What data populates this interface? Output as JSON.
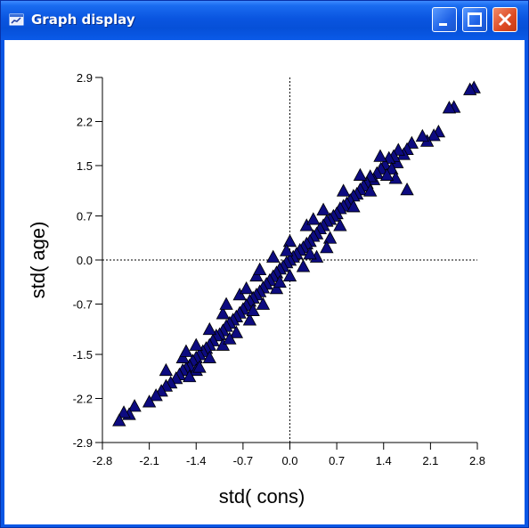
{
  "window": {
    "title": "Graph display"
  },
  "chart_data": {
    "type": "scatter",
    "xlabel": "std( cons)",
    "ylabel": "std( age)",
    "xlim": [
      -2.8,
      2.8
    ],
    "ylim": [
      -2.9,
      2.9
    ],
    "x_ticks": [
      -2.8,
      -2.1,
      -1.4,
      -0.7,
      0.0,
      0.7,
      1.4,
      2.1,
      2.8
    ],
    "x_tick_labels": [
      "-2.8",
      "-2.1",
      "-1.4",
      "-0.7",
      "0.0",
      "0.7",
      "1.4",
      "2.1",
      "2.8"
    ],
    "y_ticks": [
      2.9,
      2.2,
      1.5,
      0.7,
      0.0,
      -0.7,
      -1.5,
      -2.2,
      -2.9
    ],
    "y_tick_labels": [
      "2.9",
      "2.2",
      "1.5",
      "0.7",
      "0.0",
      "-0.7",
      "-1.5",
      "-2.2",
      "-2.9"
    ],
    "reference_lines": {
      "x": 0,
      "y": 0
    },
    "marker": {
      "shape": "triangle",
      "fill": "#0d0b80",
      "stroke": "#000000"
    },
    "series": [
      {
        "points": [
          [
            2.75,
            2.74
          ],
          [
            2.69,
            2.71
          ],
          [
            2.45,
            2.43
          ],
          [
            2.38,
            2.42
          ],
          [
            2.22,
            2.04
          ],
          [
            2.15,
            1.98
          ],
          [
            2.05,
            1.89
          ],
          [
            1.98,
            1.97
          ],
          [
            1.82,
            1.86
          ],
          [
            1.75,
            1.76
          ],
          [
            1.7,
            1.68
          ],
          [
            1.62,
            1.75
          ],
          [
            1.6,
            1.55
          ],
          [
            1.55,
            1.65
          ],
          [
            1.48,
            1.62
          ],
          [
            1.42,
            1.52
          ],
          [
            1.36,
            1.45
          ],
          [
            1.3,
            1.38
          ],
          [
            1.25,
            1.28
          ],
          [
            1.2,
            1.33
          ],
          [
            1.15,
            1.22
          ],
          [
            1.1,
            1.18
          ],
          [
            1.05,
            1.12
          ],
          [
            1.0,
            1.05
          ],
          [
            0.95,
            1.02
          ],
          [
            0.9,
            0.95
          ],
          [
            0.85,
            0.9
          ],
          [
            0.8,
            0.86
          ],
          [
            0.75,
            0.82
          ],
          [
            0.7,
            0.74
          ],
          [
            0.65,
            0.7
          ],
          [
            0.6,
            0.65
          ],
          [
            0.55,
            0.62
          ],
          [
            0.5,
            0.55
          ],
          [
            0.45,
            0.5
          ],
          [
            0.4,
            0.42
          ],
          [
            0.35,
            0.38
          ],
          [
            0.3,
            0.3
          ],
          [
            0.25,
            0.26
          ],
          [
            0.2,
            0.2
          ],
          [
            0.15,
            0.16
          ],
          [
            0.1,
            0.1
          ],
          [
            0.05,
            0.05
          ],
          [
            0.0,
            0.0
          ],
          [
            -0.05,
            -0.04
          ],
          [
            -0.1,
            -0.1
          ],
          [
            -0.15,
            -0.14
          ],
          [
            -0.2,
            -0.2
          ],
          [
            -0.25,
            -0.26
          ],
          [
            -0.3,
            -0.32
          ],
          [
            -0.35,
            -0.38
          ],
          [
            -0.4,
            -0.44
          ],
          [
            -0.45,
            -0.5
          ],
          [
            -0.5,
            -0.55
          ],
          [
            -0.55,
            -0.6
          ],
          [
            -0.6,
            -0.65
          ],
          [
            -0.65,
            -0.72
          ],
          [
            -0.7,
            -0.78
          ],
          [
            -0.75,
            -0.84
          ],
          [
            -0.8,
            -0.9
          ],
          [
            -0.85,
            -0.95
          ],
          [
            -0.9,
            -1.0
          ],
          [
            -0.95,
            -1.05
          ],
          [
            -1.0,
            -1.12
          ],
          [
            -1.05,
            -1.18
          ],
          [
            -1.1,
            -1.2
          ],
          [
            -1.15,
            -1.28
          ],
          [
            -1.2,
            -1.35
          ],
          [
            -1.25,
            -1.4
          ],
          [
            -1.3,
            -1.45
          ],
          [
            -1.35,
            -1.5
          ],
          [
            -1.4,
            -1.55
          ],
          [
            -1.45,
            -1.6
          ],
          [
            -1.5,
            -1.68
          ],
          [
            -1.55,
            -1.72
          ],
          [
            -1.6,
            -1.75
          ],
          [
            -1.65,
            -1.82
          ],
          [
            -1.7,
            -1.88
          ],
          [
            -1.78,
            -1.95
          ],
          [
            -1.85,
            -2.0
          ],
          [
            -1.92,
            -2.08
          ],
          [
            -2.0,
            -2.15
          ],
          [
            -2.1,
            -2.25
          ],
          [
            -2.32,
            -2.32
          ],
          [
            -2.4,
            -2.45
          ],
          [
            -2.48,
            -2.42
          ],
          [
            -2.55,
            -2.55
          ],
          [
            1.75,
            1.12
          ],
          [
            1.52,
            1.45
          ],
          [
            1.58,
            1.3
          ],
          [
            1.2,
            1.1
          ],
          [
            0.95,
            0.85
          ],
          [
            0.6,
            0.35
          ],
          [
            0.55,
            0.2
          ],
          [
            0.4,
            0.05
          ],
          [
            0.2,
            -0.1
          ],
          [
            0.0,
            -0.25
          ],
          [
            -0.2,
            -0.45
          ],
          [
            -0.4,
            -0.7
          ],
          [
            -0.6,
            -0.95
          ],
          [
            -0.8,
            -1.15
          ],
          [
            -1.0,
            -1.35
          ],
          [
            -1.2,
            -1.55
          ],
          [
            -1.4,
            -1.75
          ],
          [
            -1.5,
            -1.85
          ],
          [
            0.8,
            1.1
          ],
          [
            0.5,
            0.8
          ],
          [
            0.25,
            0.55
          ],
          [
            0.0,
            0.3
          ],
          [
            -0.25,
            0.05
          ],
          [
            -0.5,
            -0.25
          ],
          [
            -0.75,
            -0.55
          ],
          [
            -1.0,
            -0.85
          ],
          [
            -1.2,
            -1.1
          ],
          [
            -1.4,
            -1.35
          ],
          [
            -1.6,
            -1.55
          ],
          [
            1.05,
            1.35
          ],
          [
            1.35,
            1.65
          ],
          [
            0.75,
            0.55
          ],
          [
            0.3,
            0.1
          ],
          [
            -0.15,
            -0.35
          ],
          [
            -0.55,
            -0.8
          ],
          [
            -0.9,
            -1.25
          ],
          [
            -1.35,
            -1.7
          ],
          [
            1.45,
            1.35
          ],
          [
            0.35,
            0.65
          ],
          [
            -0.05,
            0.15
          ],
          [
            -0.45,
            -0.15
          ],
          [
            -0.65,
            -0.45
          ],
          [
            -0.95,
            -0.7
          ],
          [
            -1.55,
            -1.45
          ],
          [
            -1.85,
            -1.75
          ]
        ]
      }
    ]
  }
}
